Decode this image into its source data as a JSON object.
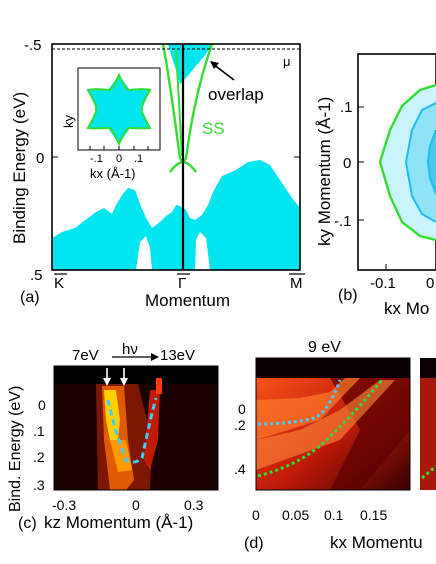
{
  "panels": {
    "a": {
      "label": "(a)",
      "ylabel": "Binding Energy (eV)",
      "xlabel": "Momentum",
      "yticks": [
        "-.5",
        "0",
        ".5"
      ],
      "xticks": [
        "K",
        "Γ",
        "M"
      ],
      "mu_label": "μ",
      "overlap_label": "overlap",
      "ss_label": "SS",
      "inset": {
        "ylabel": "ky",
        "xlabel": "kx (Å-1)",
        "xticks": [
          "-.1",
          "0",
          ".1"
        ]
      }
    },
    "b": {
      "label": "(b)",
      "ylabel": "ky Momentum (Å-1)",
      "xlabel": "kx Mo",
      "yticks": [
        ".1",
        "0",
        "-.1"
      ],
      "xticks": [
        "-0.1",
        "0"
      ]
    },
    "c": {
      "label": "(c)",
      "ylabel": "Bind. Energy (eV)",
      "xlabel": "kz Momentum (Å-1)",
      "yticks": [
        "0",
        ".1",
        ".2",
        ".3"
      ],
      "xticks": [
        "-0.3",
        "0",
        "0.3"
      ],
      "hv_low": "7eV",
      "hv_label": "hν",
      "hv_high": "13eV"
    },
    "d": {
      "label": "(d)",
      "title": "9 eV",
      "xlabel": "kx Momentu",
      "yticks": [
        "0",
        ".2",
        ".4"
      ],
      "xticks": [
        "0",
        "0.05",
        "0.1",
        "0.15"
      ]
    }
  },
  "colors": {
    "bulk": "#00e5ee",
    "surface_state": "#33dd33",
    "contour_dark": "#22bbee",
    "arpes_dispersion": "#44ccff",
    "arpes_fit": "#33dd33"
  },
  "chart_data": [
    {
      "type": "area",
      "panel": "a",
      "ylabel": "Binding Energy (eV)",
      "xlabel": "Momentum",
      "ylim": [
        0.5,
        -0.5
      ],
      "x_ticks": [
        "K",
        "Γ",
        "M"
      ],
      "fermi_level": -0.48,
      "series": [
        {
          "name": "SS",
          "x": [
            -0.13,
            -0.07,
            -0.02,
            0.0,
            0.02,
            0.07,
            0.13
          ],
          "y": [
            -0.5,
            -0.25,
            -0.04,
            0.0,
            -0.04,
            -0.25,
            -0.5
          ]
        }
      ],
      "annotations": [
        "overlap",
        "SS",
        "μ"
      ]
    },
    {
      "type": "line",
      "panel": "b",
      "ylabel": "ky Momentum (Å-1)",
      "xlabel": "kx Mo",
      "y_ticks": [
        0.1,
        0,
        -0.1
      ],
      "x_ticks": [
        -0.1,
        0
      ]
    },
    {
      "type": "heatmap",
      "panel": "c",
      "ylabel": "Bind. Energy (eV)",
      "xlabel": "kz Momentum (Å-1)",
      "xlim": [
        -0.35,
        0.35
      ],
      "ylim": [
        -0.05,
        0.35
      ],
      "x_ticks": [
        -0.3,
        0,
        0.3
      ],
      "y_ticks": [
        0,
        0.1,
        0.2,
        0.3
      ],
      "series": [
        {
          "x": [
            -0.1,
            -0.08,
            -0.05,
            -0.03,
            0.0,
            0.03,
            0.07,
            0.1
          ],
          "y": [
            0.0,
            0.07,
            0.15,
            0.22,
            0.24,
            0.23,
            0.12,
            0.01
          ]
        }
      ]
    },
    {
      "type": "heatmap",
      "panel": "d",
      "title": "9 eV",
      "xlabel": "kx Momentu",
      "xlim": [
        0,
        0.17
      ],
      "ylim": [
        -0.05,
        0.45
      ],
      "x_ticks": [
        0,
        0.05,
        0.1,
        0.15
      ],
      "y_ticks": [
        0,
        0.2,
        0.4
      ],
      "series": [
        {
          "x": [
            0.0,
            0.02,
            0.04,
            0.06,
            0.08,
            0.1
          ],
          "y": [
            0.2,
            0.2,
            0.19,
            0.16,
            0.1,
            0.0
          ]
        },
        {
          "x": [
            0.0,
            0.03,
            0.06,
            0.09,
            0.12,
            0.15
          ],
          "y": [
            0.44,
            0.4,
            0.32,
            0.22,
            0.11,
            0.0
          ]
        }
      ]
    }
  ]
}
